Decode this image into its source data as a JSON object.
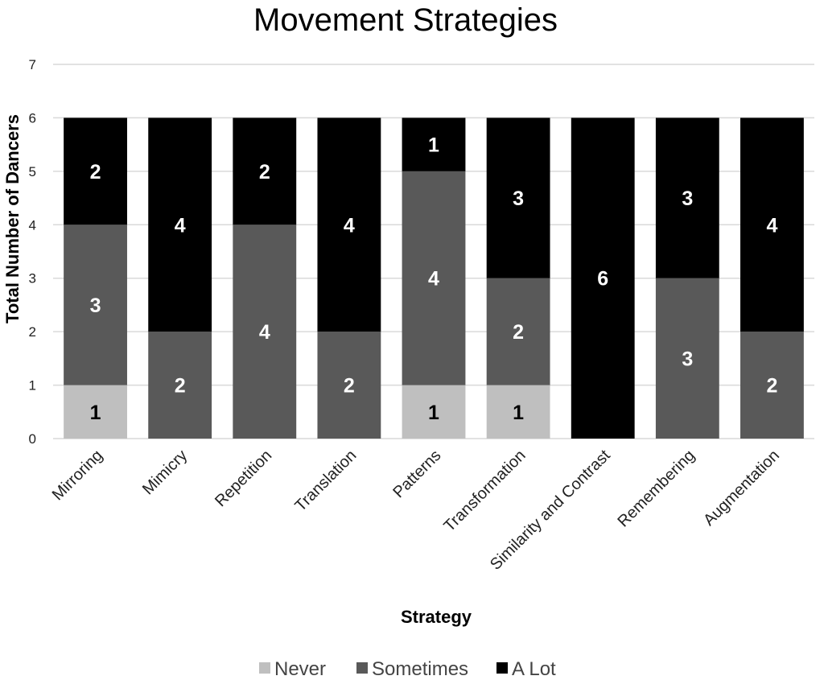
{
  "chart_data": {
    "type": "bar",
    "stacked": true,
    "title": "Movement Strategies",
    "xlabel": "Strategy",
    "ylabel": "Total Number of Dancers",
    "ylim": [
      0,
      7
    ],
    "yticks": [
      "0",
      "1",
      "2",
      "3",
      "4",
      "5",
      "6",
      "7"
    ],
    "grid": true,
    "legend_position": "bottom",
    "categories": [
      "Mirroring",
      "Mimicry",
      "Repetition",
      "Translation",
      "Patterns",
      "Transformation",
      "Similarity and Contrast",
      "Remembering",
      "Augmentation"
    ],
    "series": [
      {
        "name": "Never",
        "color": "#bfbfbf",
        "label_color": "#000000",
        "values": [
          1,
          0,
          0,
          0,
          1,
          1,
          0,
          0,
          0
        ]
      },
      {
        "name": "Sometimes",
        "color": "#595959",
        "label_color": "#ffffff",
        "values": [
          3,
          2,
          4,
          2,
          4,
          2,
          0,
          3,
          2
        ]
      },
      {
        "name": "A Lot",
        "color": "#000000",
        "label_color": "#ffffff",
        "values": [
          2,
          4,
          2,
          4,
          1,
          3,
          6,
          3,
          4
        ]
      }
    ]
  }
}
